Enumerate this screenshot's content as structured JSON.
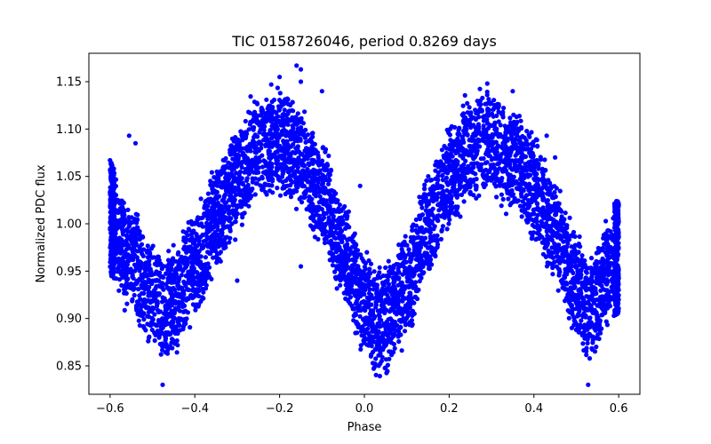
{
  "chart_data": {
    "type": "scatter",
    "title": "TIC 0158726046, period 0.8269 days",
    "xlabel": "Phase",
    "ylabel": "Normalized PDC flux",
    "xlim": [
      -0.65,
      0.65
    ],
    "ylim": [
      0.82,
      1.18
    ],
    "xticks": [
      -0.6,
      -0.4,
      -0.2,
      0.0,
      0.2,
      0.4,
      0.6
    ],
    "xtick_labels": [
      "−0.6",
      "−0.4",
      "−0.2",
      "0.0",
      "0.2",
      "0.4",
      "0.6"
    ],
    "yticks": [
      0.85,
      0.9,
      0.95,
      1.0,
      1.05,
      1.1,
      1.15
    ],
    "ytick_labels": [
      "0.85",
      "0.90",
      "0.95",
      "1.00",
      "1.05",
      "1.10",
      "1.15"
    ],
    "grid": false,
    "legend": "none",
    "marker_color": "#0000ff",
    "phase_range": [
      -0.6,
      0.6
    ],
    "profile": {
      "phase": [
        -0.6,
        -0.55,
        -0.5,
        -0.47,
        -0.45,
        -0.4,
        -0.35,
        -0.3,
        -0.25,
        -0.21,
        -0.15,
        -0.1,
        -0.05,
        0.0,
        0.04,
        0.1,
        0.15,
        0.2,
        0.25,
        0.29,
        0.35,
        0.4,
        0.45,
        0.5,
        0.53,
        0.6
      ],
      "flux_median": [
        1.005,
        0.965,
        0.925,
        0.912,
        0.918,
        0.955,
        1.005,
        1.045,
        1.08,
        1.088,
        1.07,
        1.03,
        0.97,
        0.915,
        0.895,
        0.935,
        1.0,
        1.05,
        1.08,
        1.088,
        1.07,
        1.035,
        0.99,
        0.935,
        0.915,
        0.965
      ],
      "spread": 0.05
    },
    "outliers": [
      {
        "x": -0.476,
        "y": 0.83
      },
      {
        "x": 0.528,
        "y": 0.83
      },
      {
        "x": -0.16,
        "y": 1.167
      },
      {
        "x": -0.15,
        "y": 1.163
      },
      {
        "x": -0.2,
        "y": 1.155
      },
      {
        "x": -0.15,
        "y": 1.15
      },
      {
        "x": 0.29,
        "y": 1.148
      },
      {
        "x": 0.35,
        "y": 1.14
      },
      {
        "x": -0.555,
        "y": 1.093
      },
      {
        "x": -0.54,
        "y": 1.085
      },
      {
        "x": 0.43,
        "y": 1.093
      },
      {
        "x": 0.45,
        "y": 1.07
      },
      {
        "x": -0.1,
        "y": 1.14
      },
      {
        "x": 0.08,
        "y": 0.91
      },
      {
        "x": -0.3,
        "y": 0.94
      },
      {
        "x": -0.15,
        "y": 0.955
      },
      {
        "x": 0.05,
        "y": 0.848
      },
      {
        "x": -0.01,
        "y": 1.04
      },
      {
        "x": 0.6,
        "y": 1.02
      },
      {
        "x": -0.6,
        "y": 1.067
      }
    ]
  }
}
